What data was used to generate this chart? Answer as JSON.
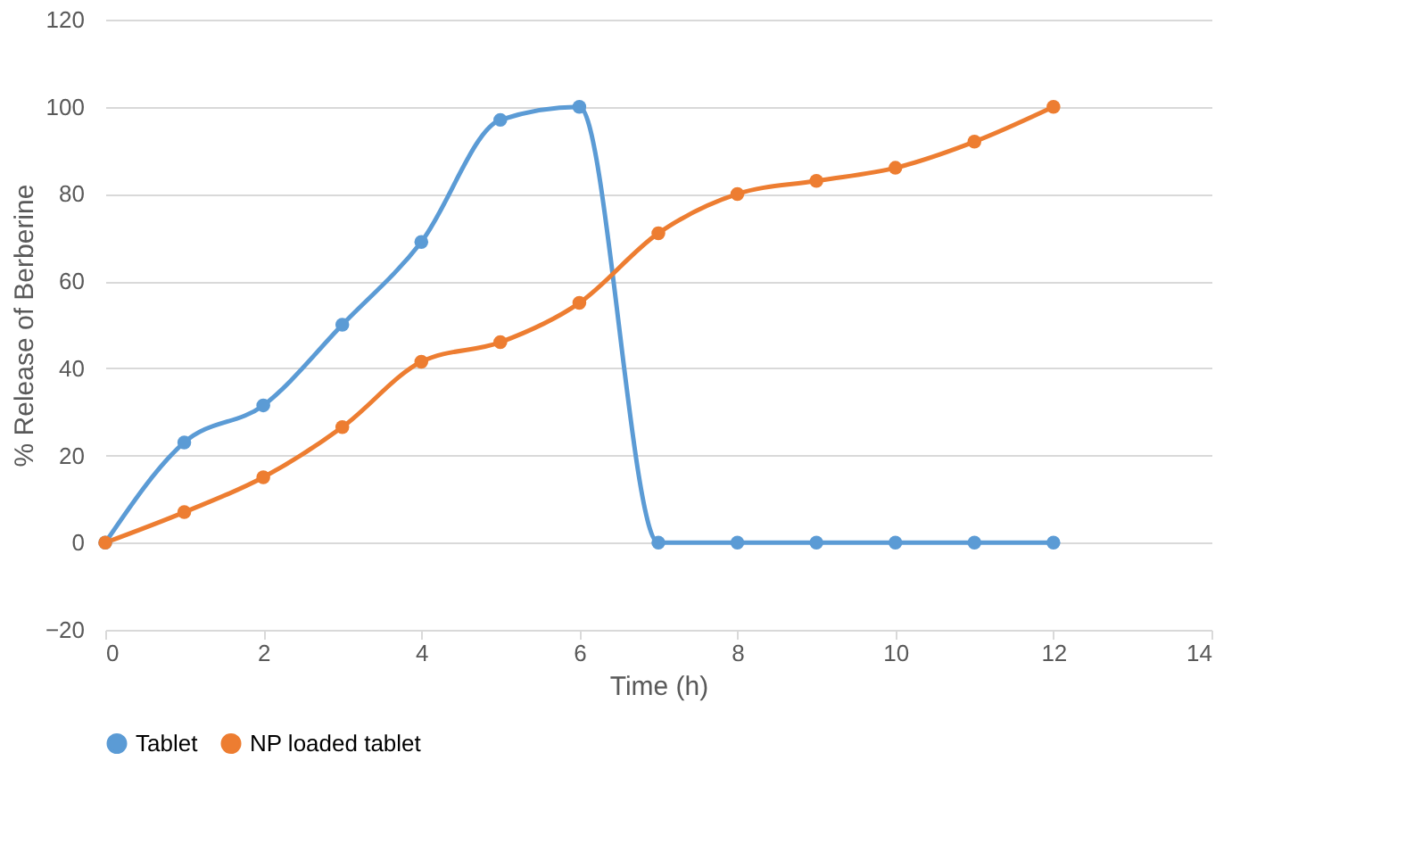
{
  "chart_data": {
    "type": "line",
    "xlabel": "Time (h)",
    "ylabel": "% Release of Berberine",
    "x": [
      0,
      1,
      2,
      3,
      4,
      5,
      6,
      7,
      8,
      9,
      10,
      11,
      12
    ],
    "series": [
      {
        "name": "Tablet",
        "color": "#5b9bd5",
        "values": [
          0,
          23,
          31.5,
          50,
          69,
          97,
          100,
          0,
          0,
          0,
          0,
          0,
          0
        ]
      },
      {
        "name": "NP loaded tablet",
        "color": "#ed7d31",
        "values": [
          0,
          7,
          15,
          26.5,
          41.5,
          46,
          55,
          71,
          80,
          83,
          86,
          92,
          100
        ]
      }
    ],
    "xlim": [
      0,
      14
    ],
    "xticks": [
      0,
      2,
      4,
      6,
      8,
      10,
      12,
      14
    ],
    "ylim": [
      -20,
      120
    ],
    "yticks": [
      -20,
      0,
      20,
      40,
      60,
      80,
      100,
      120
    ],
    "grid": "y",
    "legend": "bottom",
    "marker": "circle",
    "line_style": "solid"
  }
}
